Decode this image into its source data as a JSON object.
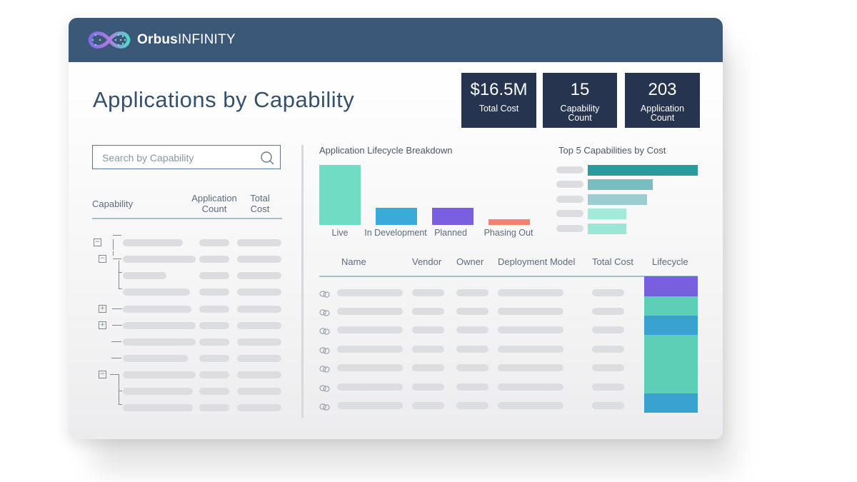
{
  "brand": {
    "name_bold": "Orbus",
    "name_light": "INFINITY"
  },
  "page": {
    "title": "Applications by Capability"
  },
  "kpis": [
    {
      "value": "$16.5M",
      "label": "Total Cost"
    },
    {
      "value": "15",
      "label": "Capability Count"
    },
    {
      "value": "203",
      "label": "Application Count"
    }
  ],
  "search": {
    "placeholder": "Search by Capability"
  },
  "capability_table": {
    "headers": {
      "capability": "Capability",
      "app_count": "Application Count",
      "total_cost": "Total Cost"
    }
  },
  "lifecycle_chart": {
    "title": "Application Lifecycle Breakdown",
    "categories": [
      "Live",
      "In Development",
      "Planned",
      "Phasing Out"
    ],
    "colors": [
      "#6fdcc3",
      "#3aaad8",
      "#7a5ee0",
      "#f5826c"
    ]
  },
  "top5_chart": {
    "title": "Top 5 Capabilities by Cost",
    "colors": [
      "#2a9b9c",
      "#78bdbf",
      "#9ccdd0",
      "#a3ead9",
      "#9be6d5"
    ]
  },
  "app_table": {
    "headers": {
      "name": "Name",
      "vendor": "Vendor",
      "owner": "Owner",
      "deployment": "Deployment Model",
      "total_cost": "Total Cost",
      "lifecycle": "Lifecycle"
    },
    "lifecycle_colors": [
      "#7a5ee0",
      "#5ccfb6",
      "#3aa2cf",
      "#5ccfb6",
      "#5ccfb6",
      "#5ccfb6",
      "#3aa2cf"
    ]
  },
  "chart_data": [
    {
      "type": "bar",
      "title": "Application Lifecycle Breakdown",
      "categories": [
        "Live",
        "In Development",
        "Planned",
        "Phasing Out"
      ],
      "values": [
        100,
        29,
        29,
        9
      ],
      "xlabel": "",
      "ylabel": "",
      "ylim": [
        0,
        100
      ],
      "grid": false
    },
    {
      "type": "bar",
      "orientation": "horizontal",
      "title": "Top 5 Capabilities by Cost",
      "categories": [
        "",
        "",
        "",
        "",
        ""
      ],
      "values": [
        100,
        59,
        54,
        35,
        35
      ],
      "xlabel": "",
      "ylabel": "",
      "xlim": [
        0,
        100
      ],
      "grid": false
    }
  ]
}
